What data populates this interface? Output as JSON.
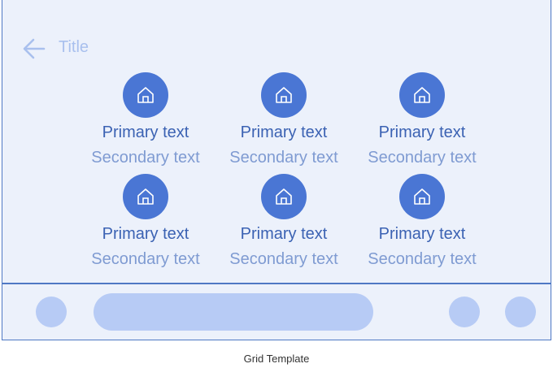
{
  "app_bar": {
    "back_icon": "arrow-left-icon",
    "title": "Title"
  },
  "grid_items": [
    {
      "icon": "home-icon",
      "primary": "Primary text",
      "secondary": "Secondary text"
    },
    {
      "icon": "home-icon",
      "primary": "Primary text",
      "secondary": "Secondary text"
    },
    {
      "icon": "home-icon",
      "primary": "Primary text",
      "secondary": "Secondary text"
    },
    {
      "icon": "home-icon",
      "primary": "Primary text",
      "secondary": "Secondary text"
    },
    {
      "icon": "home-icon",
      "primary": "Primary text",
      "secondary": "Secondary text"
    },
    {
      "icon": "home-icon",
      "primary": "Primary text",
      "secondary": "Secondary text"
    }
  ],
  "bottom_bar": {
    "items": [
      "circle-button",
      "pill-field",
      "circle-button",
      "circle-button"
    ]
  },
  "caption": "Grid Template",
  "colors": {
    "background": "#ecf1fb",
    "accent": "#4a76d4",
    "primary_text": "#3b62b3",
    "secondary_text": "#7f9bd2",
    "placeholder": "#b7cbf5",
    "border": "#4f78c4"
  }
}
